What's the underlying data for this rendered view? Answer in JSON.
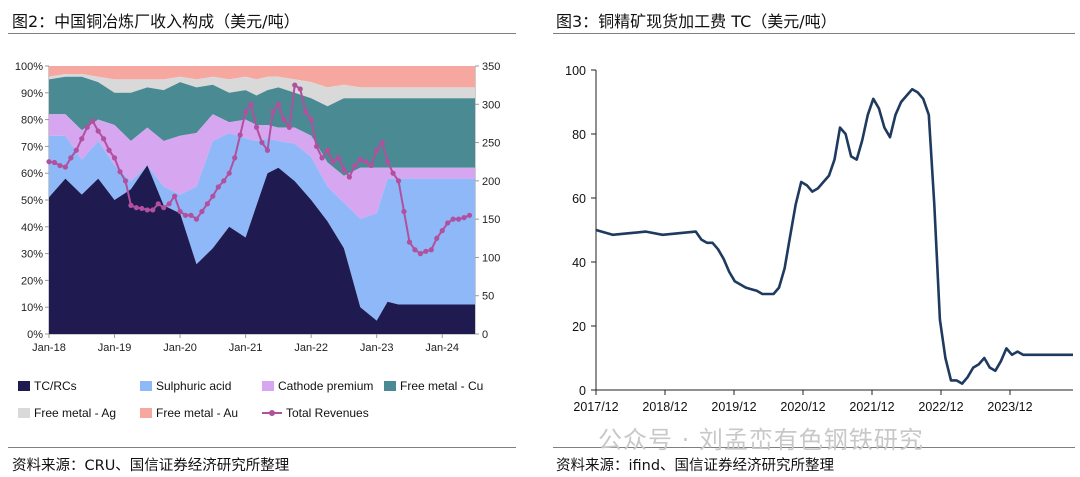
{
  "left": {
    "title": "图2：中国铜冶炼厂收入构成（美元/吨）",
    "source": "资料来源：CRU、国信证券经济研究所整理"
  },
  "right": {
    "title": "图3：铜精矿现货加工费 TC（美元/吨）",
    "source": "资料来源：ifind、国信证券经济研究所整理"
  },
  "watermark": "公众号 · 刘孟峦有色钢铁研究",
  "colors": {
    "tc": "#1f1a4f",
    "sulph": "#8fb8f8",
    "cath": "#d7a6f0",
    "cu": "#4a8b93",
    "ag": "#d9d9d9",
    "au": "#f6a8a0",
    "rev": "#b0509e",
    "line": "#1f3a5f"
  },
  "chart_data": [
    {
      "type": "area",
      "title": "中国铜冶炼厂收入构成（美元/吨）",
      "x_ticks": [
        "Jan-18",
        "Jan-19",
        "Jan-20",
        "Jan-21",
        "Jan-22",
        "Jan-23",
        "Jan-24"
      ],
      "y_left_ticks": [
        "0%",
        "10%",
        "20%",
        "30%",
        "40%",
        "50%",
        "60%",
        "70%",
        "80%",
        "90%",
        "100%"
      ],
      "y_right_ticks": [
        "0",
        "50",
        "100",
        "150",
        "200",
        "250",
        "300",
        "350"
      ],
      "ylim_left": [
        0,
        100
      ],
      "ylim_right": [
        0,
        350
      ],
      "x_months": [
        0,
        3,
        6,
        9,
        12,
        15,
        18,
        21,
        24,
        27,
        30,
        33,
        36,
        38,
        40,
        42,
        45,
        48,
        51,
        54,
        57,
        60,
        62,
        64,
        66,
        68,
        70,
        72,
        74,
        76,
        78
      ],
      "series": [
        {
          "name": "TC/RCs",
          "cum": [
            51,
            58,
            52,
            58,
            50,
            54,
            63,
            48,
            45,
            26,
            32,
            40,
            36,
            48,
            60,
            62,
            57,
            50,
            42,
            32,
            10,
            5,
            12,
            11,
            11,
            11,
            11,
            11,
            11,
            11,
            11
          ]
        },
        {
          "name": "Sulphuric acid",
          "cum": [
            74,
            74,
            65,
            72,
            63,
            57,
            63,
            55,
            52,
            55,
            72,
            75,
            73,
            72,
            73,
            72,
            71,
            66,
            55,
            49,
            43,
            45,
            58,
            58,
            58,
            58,
            58,
            58,
            58,
            58,
            58
          ]
        },
        {
          "name": "Cathode premium",
          "cum": [
            82,
            82,
            76,
            80,
            78,
            72,
            77,
            72,
            74,
            75,
            82,
            79,
            80,
            78,
            78,
            77,
            77,
            74,
            64,
            59,
            62,
            62,
            62,
            62,
            62,
            62,
            62,
            62,
            62,
            62,
            62
          ]
        },
        {
          "name": "Free metal - Cu",
          "cum": [
            95,
            96,
            96,
            94,
            90,
            90,
            92,
            91,
            94,
            92,
            93,
            90,
            91,
            89,
            91,
            92,
            90,
            88,
            85,
            88,
            88,
            88,
            88,
            88,
            88,
            88,
            88,
            88,
            88,
            88,
            88
          ]
        },
        {
          "name": "Free metal - Ag",
          "cum": [
            96,
            97,
            97,
            96,
            95,
            95,
            95,
            95,
            96,
            95,
            96,
            95,
            96,
            95,
            96,
            96,
            95,
            94,
            92,
            93,
            92,
            92,
            92,
            92,
            92,
            92,
            92,
            92,
            92,
            92,
            92
          ]
        },
        {
          "name": "Free metal - Au",
          "cum": [
            100,
            100,
            100,
            100,
            100,
            100,
            100,
            100,
            100,
            100,
            100,
            100,
            100,
            100,
            100,
            100,
            100,
            100,
            100,
            100,
            100,
            100,
            100,
            100,
            100,
            100,
            100,
            100,
            100,
            100,
            100
          ]
        }
      ],
      "revenue_line": {
        "name": "Total Revenues",
        "months": [
          0,
          1,
          2,
          3,
          4,
          5,
          6,
          7,
          8,
          9,
          10,
          11,
          12,
          13,
          14,
          15,
          16,
          17,
          18,
          19,
          20,
          21,
          22,
          23,
          24,
          25,
          26,
          27,
          28,
          29,
          30,
          31,
          32,
          33,
          34,
          35,
          36,
          37,
          38,
          39,
          40,
          41,
          42,
          43,
          44,
          45,
          46,
          47,
          48,
          49,
          50,
          51,
          52,
          53,
          54,
          55,
          56,
          57,
          58,
          59,
          60,
          61,
          62,
          63,
          64,
          65,
          66,
          67,
          68,
          69,
          70,
          71,
          72,
          73,
          74,
          75,
          76,
          77
        ],
        "values": [
          225,
          224,
          220,
          218,
          230,
          240,
          255,
          270,
          278,
          265,
          255,
          240,
          230,
          212,
          200,
          168,
          165,
          164,
          162,
          162,
          170,
          165,
          170,
          180,
          160,
          155,
          155,
          150,
          160,
          170,
          180,
          192,
          200,
          210,
          230,
          260,
          290,
          300,
          270,
          250,
          240,
          290,
          300,
          280,
          270,
          325,
          320,
          290,
          280,
          245,
          230,
          240,
          225,
          230,
          215,
          205,
          220,
          228,
          225,
          220,
          240,
          250,
          225,
          210,
          200,
          160,
          120,
          110,
          105,
          108,
          110,
          125,
          135,
          145,
          150,
          150,
          152,
          155
        ]
      }
    },
    {
      "type": "line",
      "title": "铜精矿现货加工费 TC（美元/吨）",
      "x_ticks": [
        "2017/12",
        "2018/12",
        "2019/12",
        "2020/12",
        "2021/12",
        "2022/12",
        "2023/12"
      ],
      "y_ticks": [
        "0",
        "20",
        "40",
        "60",
        "80",
        "100"
      ],
      "ylim": [
        0,
        100
      ],
      "t": [
        0,
        3,
        6,
        9,
        12,
        15,
        18,
        19,
        20,
        21,
        22,
        23,
        24,
        25,
        26,
        27,
        28,
        29,
        30,
        31,
        32,
        33,
        34,
        35,
        36,
        37,
        38,
        39,
        40,
        41,
        42,
        43,
        44,
        45,
        46,
        47,
        48,
        49,
        50,
        51,
        52,
        53,
        54,
        55,
        56,
        57,
        58,
        59,
        60,
        61,
        62,
        63,
        64,
        65,
        66,
        67,
        68,
        69,
        70,
        71,
        72,
        73,
        74,
        75,
        76,
        77,
        78,
        79,
        80,
        81,
        82,
        83,
        84,
        85,
        86
      ],
      "values": [
        50,
        48.5,
        49,
        49.5,
        48.5,
        49,
        49.5,
        47,
        46,
        46,
        44,
        41,
        37,
        34,
        33,
        32,
        31.5,
        31,
        30,
        30,
        30,
        32,
        38,
        48,
        58,
        65,
        64,
        62,
        63,
        65,
        67,
        72,
        82,
        80,
        73,
        72,
        78,
        86,
        91,
        88,
        82,
        79,
        86,
        90,
        92,
        94,
        93,
        91,
        86,
        58,
        22,
        10,
        3,
        3,
        2,
        4,
        7,
        8,
        10,
        7,
        6,
        9,
        13,
        11,
        12,
        11,
        11,
        11,
        11,
        11,
        11,
        11,
        11,
        11,
        11
      ]
    }
  ],
  "legend": [
    {
      "label": "TC/RCs",
      "key": "tc"
    },
    {
      "label": "Sulphuric acid",
      "key": "sulph"
    },
    {
      "label": "Cathode premium",
      "key": "cath"
    },
    {
      "label": "Free metal - Cu",
      "key": "cu"
    },
    {
      "label": "Free metal - Ag",
      "key": "ag"
    },
    {
      "label": "Free metal - Au",
      "key": "au"
    },
    {
      "label": "Total Revenues",
      "key": "rev"
    }
  ]
}
